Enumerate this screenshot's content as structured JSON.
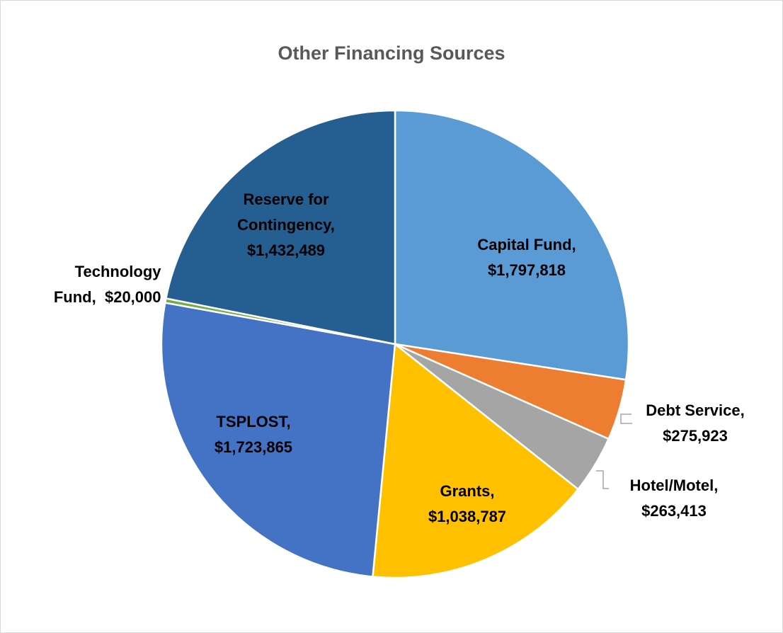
{
  "chart_data": {
    "type": "pie",
    "title": "Other Financing Sources",
    "categories": [
      "Capital Fund,",
      "Debt Service,",
      "Hotel/Motel,",
      "Grants,",
      "TSPLOST,",
      "Technology Fund,",
      "Reserve for Contingency,"
    ],
    "values": [
      1797818,
      275923,
      263413,
      1038787,
      1723865,
      20000,
      1432489
    ],
    "value_labels": [
      "$1,797,818",
      "$275,923",
      "$263,413",
      "$1,038,787",
      "$1,723,865",
      "$20,000",
      "$1,432,489"
    ],
    "colors": [
      "#5b9bd5",
      "#ed7d31",
      "#a5a5a5",
      "#ffc000",
      "#4472c4",
      "#70ad47",
      "#255e91"
    ]
  }
}
